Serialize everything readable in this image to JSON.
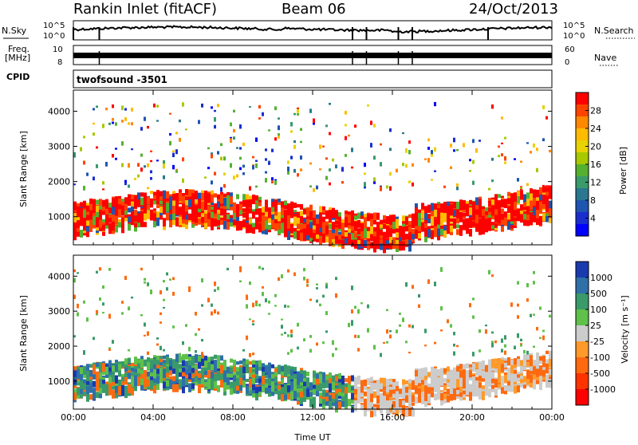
{
  "header": {
    "station": "Rankin Inlet (fitACF)",
    "beam": "Beam 06",
    "date": "24/Oct/2013"
  },
  "top_panels": {
    "nsky_label": "N.Sky",
    "nsky_ticks": [
      "10^5",
      "10^0"
    ],
    "nsearch_label": "N.Search",
    "nsearch_ticks": [
      "10^5",
      "10^0"
    ],
    "freq_label": "Freq.",
    "freq_unit": "[MHz]",
    "freq_ticks": [
      "10",
      "8"
    ],
    "nave_label": "Nave",
    "nave_ticks": [
      "60",
      "0"
    ],
    "cpid_label": "CPID",
    "cpid_value": "twofsound  -3501"
  },
  "chart_data": [
    {
      "type": "heatmap",
      "name": "power-panel",
      "ylabel": "Slant Range [km]",
      "y_ticks": [
        1000,
        2000,
        3000,
        4000
      ],
      "ylim": [
        200,
        4600
      ],
      "x_ticks": [
        "00:00",
        "04:00",
        "08:00",
        "12:00",
        "16:00",
        "20:00",
        "00:00"
      ],
      "xlim_hours": [
        0,
        24
      ],
      "colorbar": {
        "label": "Power [dB]",
        "ticks": [
          "28",
          "24",
          "20",
          "16",
          "12",
          "8",
          "4"
        ],
        "colors": [
          "#ff0000",
          "#ff4400",
          "#ff8800",
          "#ffbb00",
          "#e8d200",
          "#a8c800",
          "#55b030",
          "#3a9a6a",
          "#2a7890",
          "#1e55b0",
          "#1a2ed0",
          "#0000ff"
        ]
      }
    },
    {
      "type": "heatmap",
      "name": "velocity-panel",
      "ylabel": "Slant Range [km]",
      "y_ticks": [
        1000,
        2000,
        3000,
        4000
      ],
      "ylim": [
        200,
        4600
      ],
      "x_ticks": [
        "00:00",
        "04:00",
        "08:00",
        "12:00",
        "16:00",
        "20:00",
        "00:00"
      ],
      "xlim_hours": [
        0,
        24
      ],
      "xlabel": "Time UT",
      "colorbar": {
        "label": "Velocity [m s⁻¹]",
        "ticks": [
          "1000",
          "500",
          "100",
          "25",
          "-25",
          "-100",
          "-500",
          "-1000"
        ],
        "colors": [
          "#1a3ab0",
          "#2f70a8",
          "#3a9a6a",
          "#5fc04a",
          "#cccccc",
          "#ff9a2a",
          "#ff6a10",
          "#ff3300",
          "#ff0000"
        ]
      }
    }
  ]
}
